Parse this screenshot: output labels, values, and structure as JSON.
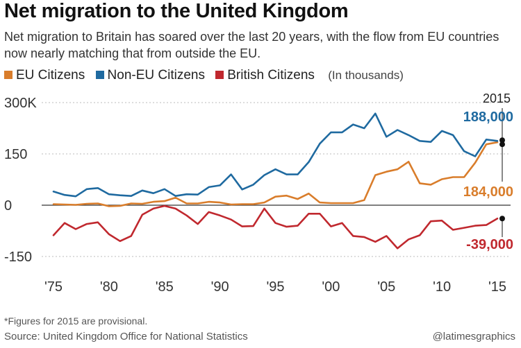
{
  "title": "Net migration to the United Kingdom",
  "subtitle": "Net migration to Britain has soared over the last 20 years, with the flow from EU countries now nearly matching that from outside the EU.",
  "legend": {
    "eu": "EU Citizens",
    "non_eu": "Non-EU Citizens",
    "british": "British Citizens",
    "unit": "(In thousands)"
  },
  "colors": {
    "eu": "#d97d2b",
    "non_eu": "#1f6aa0",
    "british": "#c0282e",
    "grid": "#bbbbbb",
    "axis": "#333333"
  },
  "footnote": "*Figures for 2015 are provisional.",
  "source": "Source: United Kingdom Office for National Statistics",
  "credit": "@latimesgraphics",
  "chart_data": {
    "type": "line",
    "ylim": [
      -150,
      300
    ],
    "y_ticks": [
      300,
      150,
      0,
      -150
    ],
    "y_tick_labels": [
      "300K",
      "150",
      "0",
      "-150"
    ],
    "xlim": [
      1975,
      2015
    ],
    "x_ticks": [
      1975,
      1980,
      1985,
      1990,
      1995,
      2000,
      2005,
      2010,
      2015
    ],
    "x_tick_labels": [
      "'75",
      "'80",
      "'85",
      "'90",
      "'95",
      "'00",
      "'05",
      "'10",
      "'15"
    ],
    "x": [
      1975,
      1976,
      1977,
      1978,
      1979,
      1980,
      1981,
      1982,
      1983,
      1984,
      1985,
      1986,
      1987,
      1988,
      1989,
      1990,
      1991,
      1992,
      1993,
      1994,
      1995,
      1996,
      1997,
      1998,
      1999,
      2000,
      2001,
      2002,
      2003,
      2004,
      2005,
      2006,
      2007,
      2008,
      2009,
      2010,
      2011,
      2012,
      2013,
      2014,
      2015
    ],
    "series": [
      {
        "name": "EU Citizens",
        "key": "eu",
        "values": [
          3,
          2,
          1,
          4,
          5,
          -3,
          -2,
          5,
          4,
          10,
          12,
          22,
          5,
          5,
          10,
          8,
          2,
          3,
          3,
          8,
          25,
          28,
          18,
          34,
          8,
          6,
          6,
          6,
          15,
          88,
          98,
          105,
          127,
          64,
          60,
          76,
          82,
          82,
          124,
          178,
          184
        ]
      },
      {
        "name": "Non-EU Citizens",
        "key": "non_eu",
        "values": [
          40,
          30,
          26,
          47,
          50,
          32,
          29,
          27,
          43,
          35,
          47,
          27,
          32,
          31,
          53,
          58,
          90,
          46,
          60,
          88,
          105,
          90,
          90,
          126,
          180,
          213,
          213,
          236,
          225,
          268,
          200,
          220,
          205,
          188,
          185,
          217,
          205,
          158,
          143,
          192,
          188
        ]
      },
      {
        "name": "British Citizens",
        "key": "british",
        "values": [
          -88,
          -52,
          -70,
          -55,
          -50,
          -85,
          -105,
          -90,
          -28,
          -10,
          -2,
          -10,
          -30,
          -55,
          -20,
          -30,
          -42,
          -62,
          -61,
          -10,
          -52,
          -63,
          -60,
          -25,
          -25,
          -62,
          -52,
          -90,
          -93,
          -107,
          -90,
          -126,
          -100,
          -88,
          -47,
          -45,
          -72,
          -66,
          -60,
          -58,
          -39
        ]
      }
    ],
    "annotations": {
      "year": "2015",
      "non_eu": "188,000",
      "eu": "184,000",
      "british": "-39,000"
    }
  }
}
